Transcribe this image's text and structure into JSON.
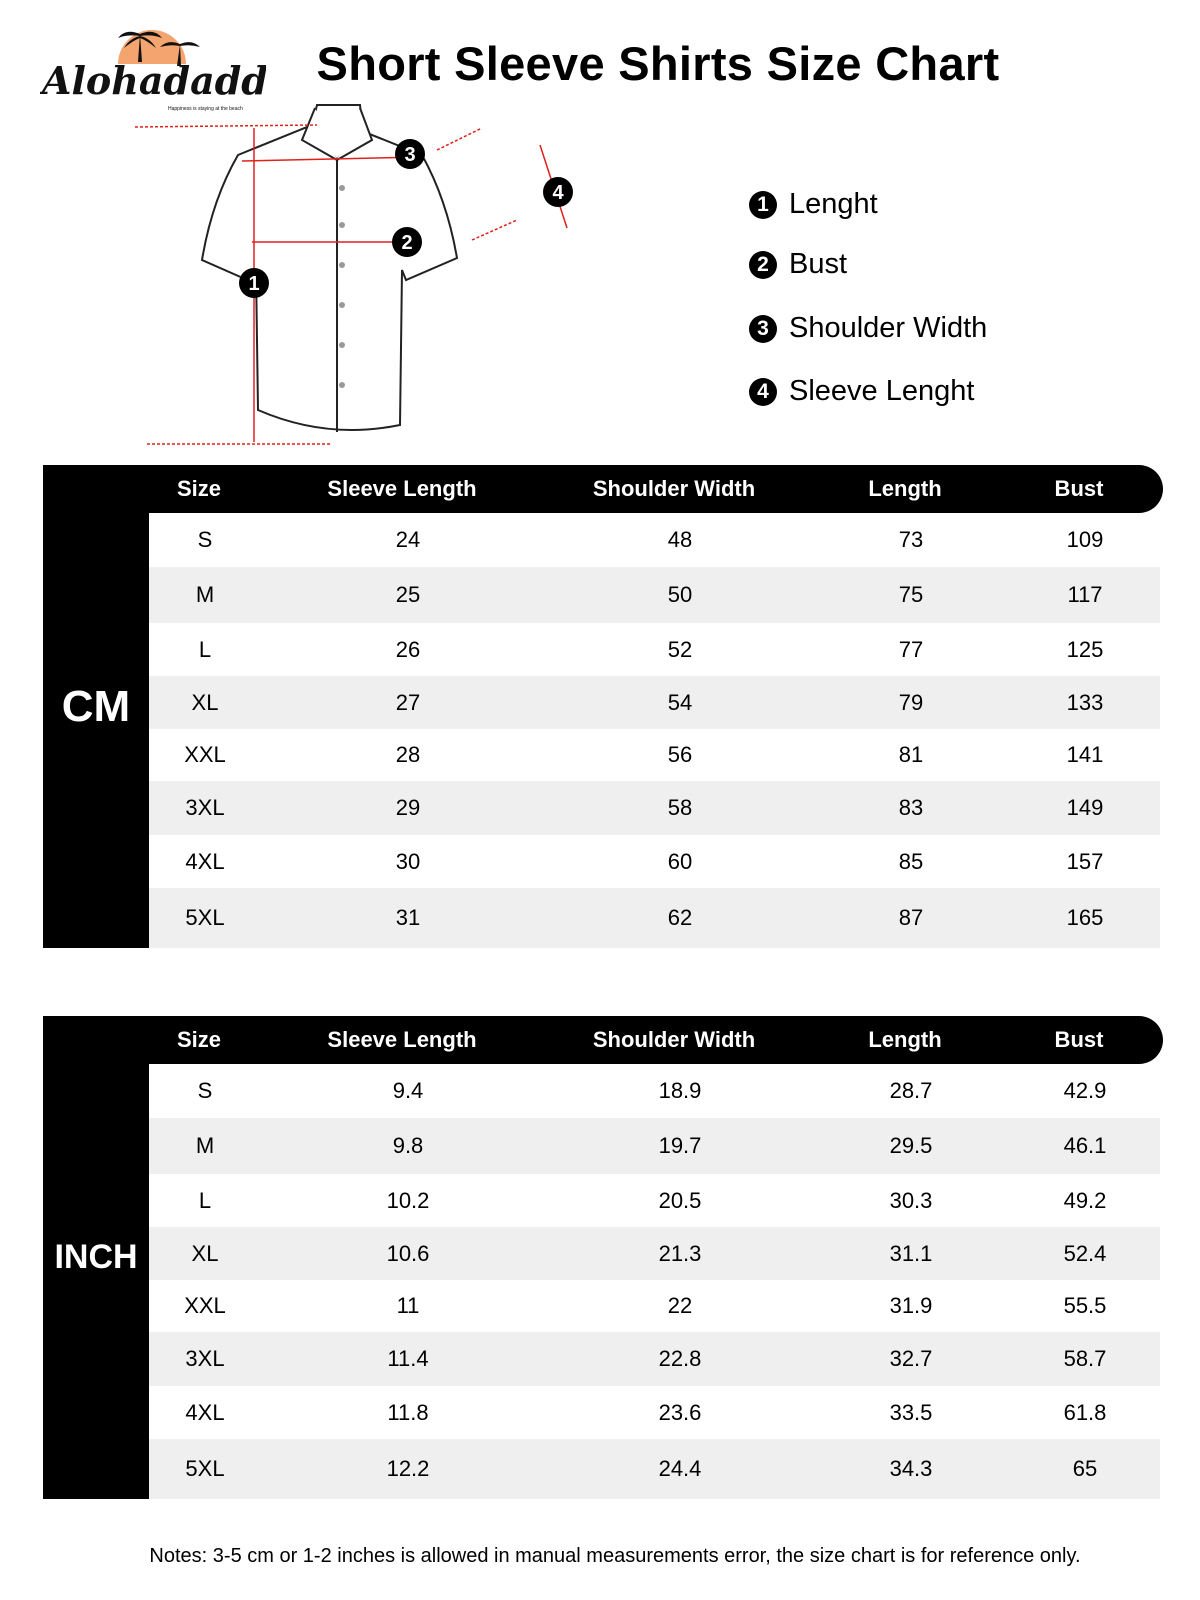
{
  "brand": {
    "name": "Alohadaddy",
    "tagline": "Happiness is staying at the beach",
    "accent": "#f4a46f"
  },
  "title": "Short Sleeve Shirts Size Chart",
  "diagram": {
    "markers": [
      "1",
      "2",
      "3",
      "4"
    ],
    "arrow_color": "#e0201b"
  },
  "legend": [
    {
      "num": "1",
      "label": "Lenght"
    },
    {
      "num": "2",
      "label": "Bust"
    },
    {
      "num": "3",
      "label": "Shoulder Width"
    },
    {
      "num": "4",
      "label": "Sleeve Lenght"
    }
  ],
  "columns": [
    "Size",
    "Sleeve Length",
    "Shoulder Width",
    "Length",
    "Bust"
  ],
  "tables": [
    {
      "unit": "CM",
      "rows": [
        [
          "S",
          "24",
          "48",
          "73",
          "109"
        ],
        [
          "M",
          "25",
          "50",
          "75",
          "117"
        ],
        [
          "L",
          "26",
          "52",
          "77",
          "125"
        ],
        [
          "XL",
          "27",
          "54",
          "79",
          "133"
        ],
        [
          "XXL",
          "28",
          "56",
          "81",
          "141"
        ],
        [
          "3XL",
          "29",
          "58",
          "83",
          "149"
        ],
        [
          "4XL",
          "30",
          "60",
          "85",
          "157"
        ],
        [
          "5XL",
          "31",
          "62",
          "87",
          "165"
        ]
      ]
    },
    {
      "unit": "INCH",
      "rows": [
        [
          "S",
          "9.4",
          "18.9",
          "28.7",
          "42.9"
        ],
        [
          "M",
          "9.8",
          "19.7",
          "29.5",
          "46.1"
        ],
        [
          "L",
          "10.2",
          "20.5",
          "30.3",
          "49.2"
        ],
        [
          "XL",
          "10.6",
          "21.3",
          "31.1",
          "52.4"
        ],
        [
          "XXL",
          "11",
          "22",
          "31.9",
          "55.5"
        ],
        [
          "3XL",
          "11.4",
          "22.8",
          "32.7",
          "58.7"
        ],
        [
          "4XL",
          "11.8",
          "23.6",
          "33.5",
          "61.8"
        ],
        [
          "5XL",
          "12.2",
          "24.4",
          "34.3",
          "65"
        ]
      ]
    }
  ],
  "notes": "Notes: 3-5 cm or 1-2 inches is allowed in manual measurements error, the size chart is for reference only."
}
